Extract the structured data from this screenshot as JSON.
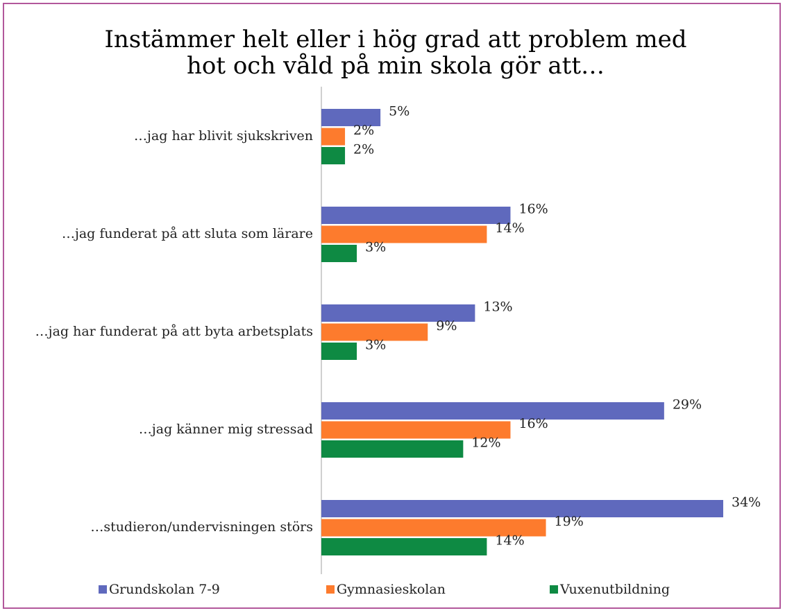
{
  "chart_data": {
    "type": "bar",
    "orientation": "horizontal",
    "title": "Instämmer helt eller i hög grad att problem med hot och våld på min skola gör att…",
    "categories": [
      "…jag har blivit sjukskriven",
      "…jag funderat på att sluta som lärare",
      "…jag har funderat på att byta arbetsplats",
      "…jag känner mig stressad",
      "…studieron/undervisningen störs"
    ],
    "series": [
      {
        "name": "Grundskolan 7-9",
        "color": "#5f69bd",
        "values": [
          5,
          16,
          13,
          29,
          34
        ],
        "value_labels": [
          "5%",
          "16%",
          "13%",
          "29%",
          "34%"
        ]
      },
      {
        "name": "Gymnasieskolan",
        "color": "#fd7b2d",
        "values": [
          2,
          14,
          9,
          16,
          19
        ],
        "value_labels": [
          "2%",
          "14%",
          "9%",
          "16%",
          "19%"
        ]
      },
      {
        "name": "Vuxenutbildning",
        "color": "#0e8a43",
        "values": [
          2,
          3,
          3,
          12,
          14
        ],
        "value_labels": [
          "2%",
          "3%",
          "3%",
          "12%",
          "14%"
        ]
      }
    ],
    "legend": "bottom"
  }
}
